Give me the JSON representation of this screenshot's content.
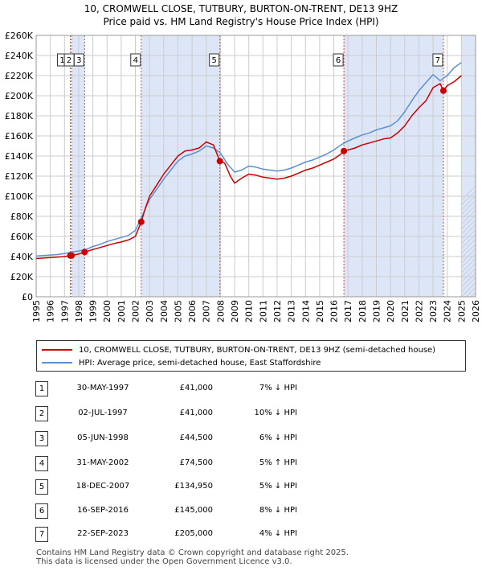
{
  "title_line1": "10, CROMWELL CLOSE, TUTBURY, BURTON-ON-TRENT, DE13 9HZ",
  "title_line2": "Price paid vs. HM Land Registry's House Price Index (HPI)",
  "colors": {
    "price_line": "#cc0000",
    "hpi_line": "#5b8fd6",
    "shade": "#dde6f7",
    "marker_line": "#dd4444",
    "grid": "#cccccc"
  },
  "chart_data": {
    "type": "line",
    "xlim": [
      1995,
      2026
    ],
    "ylim": [
      0,
      260000
    ],
    "x_ticks": [
      1995,
      1996,
      1997,
      1998,
      1999,
      2000,
      2001,
      2002,
      2003,
      2004,
      2005,
      2006,
      2007,
      2008,
      2009,
      2010,
      2011,
      2012,
      2013,
      2014,
      2015,
      2016,
      2017,
      2018,
      2019,
      2020,
      2021,
      2022,
      2023,
      2024,
      2025,
      2026
    ],
    "y_ticks": [
      {
        "value": 0,
        "label": "£0"
      },
      {
        "value": 20000,
        "label": "£20K"
      },
      {
        "value": 40000,
        "label": "£40K"
      },
      {
        "value": 60000,
        "label": "£60K"
      },
      {
        "value": 80000,
        "label": "£80K"
      },
      {
        "value": 100000,
        "label": "£100K"
      },
      {
        "value": 120000,
        "label": "£120K"
      },
      {
        "value": 140000,
        "label": "£140K"
      },
      {
        "value": 160000,
        "label": "£160K"
      },
      {
        "value": 180000,
        "label": "£180K"
      },
      {
        "value": 200000,
        "label": "£200K"
      },
      {
        "value": 220000,
        "label": "£220K"
      },
      {
        "value": 240000,
        "label": "£240K"
      },
      {
        "value": 260000,
        "label": "£260K"
      }
    ],
    "shaded_ranges": [
      [
        1997.52,
        1998.42
      ],
      [
        2002.41,
        2007.96
      ],
      [
        2016.71,
        2023.73
      ],
      [
        2025.0,
        2026.0
      ]
    ],
    "series": [
      {
        "name": "10, CROMWELL CLOSE, TUTBURY, BURTON-ON-TRENT, DE13 9HZ (semi-detached house)",
        "color": "#cc0000",
        "x": [
          1995.0,
          1995.5,
          1996.0,
          1996.5,
          1997.0,
          1997.41,
          1997.5,
          1998.0,
          1998.42,
          1999.0,
          1999.5,
          2000.0,
          2000.5,
          2001.0,
          2001.5,
          2002.0,
          2002.41,
          2002.7,
          2003.0,
          2003.5,
          2004.0,
          2004.5,
          2005.0,
          2005.5,
          2006.0,
          2006.5,
          2007.0,
          2007.5,
          2007.96,
          2008.3,
          2008.7,
          2009.0,
          2009.5,
          2010.0,
          2010.5,
          2011.0,
          2011.5,
          2012.0,
          2012.5,
          2013.0,
          2013.5,
          2014.0,
          2014.5,
          2015.0,
          2015.5,
          2016.0,
          2016.5,
          2016.71,
          2017.0,
          2017.5,
          2018.0,
          2018.5,
          2019.0,
          2019.5,
          2020.0,
          2020.5,
          2021.0,
          2021.5,
          2022.0,
          2022.5,
          2023.0,
          2023.5,
          2023.73,
          2024.0,
          2024.5,
          2025.0
        ],
        "values": [
          38000,
          38500,
          39000,
          39500,
          40000,
          41000,
          41000,
          42500,
          44500,
          47000,
          49000,
          51000,
          53000,
          54500,
          56500,
          60000,
          74500,
          88000,
          100000,
          111000,
          122000,
          131000,
          140000,
          145000,
          146000,
          148000,
          154000,
          151000,
          134950,
          133000,
          120000,
          113000,
          118000,
          122000,
          121000,
          119000,
          118000,
          117000,
          118000,
          120000,
          123000,
          126000,
          128000,
          131000,
          134000,
          137000,
          142000,
          145000,
          146000,
          148000,
          151000,
          153000,
          155000,
          157000,
          158000,
          163000,
          170000,
          180000,
          188000,
          195000,
          208000,
          212000,
          205000,
          210000,
          214000,
          220000
        ]
      },
      {
        "name": "HPI: Average price, semi-detached house, East Staffordshire",
        "color": "#5b8fd6",
        "x": [
          1995.0,
          1995.5,
          1996.0,
          1996.5,
          1997.0,
          1997.5,
          1998.0,
          1998.5,
          1999.0,
          1999.5,
          2000.0,
          2000.5,
          2001.0,
          2001.5,
          2002.0,
          2002.5,
          2003.0,
          2003.5,
          2004.0,
          2004.5,
          2005.0,
          2005.5,
          2006.0,
          2006.5,
          2007.0,
          2007.5,
          2008.0,
          2008.5,
          2009.0,
          2009.5,
          2010.0,
          2010.5,
          2011.0,
          2011.5,
          2012.0,
          2012.5,
          2013.0,
          2013.5,
          2014.0,
          2014.5,
          2015.0,
          2015.5,
          2016.0,
          2016.5,
          2017.0,
          2017.5,
          2018.0,
          2018.5,
          2019.0,
          2019.5,
          2020.0,
          2020.5,
          2021.0,
          2021.5,
          2022.0,
          2022.5,
          2023.0,
          2023.5,
          2024.0,
          2024.5,
          2025.0
        ],
        "values": [
          40500,
          41000,
          41500,
          42000,
          43000,
          44500,
          45500,
          47000,
          50000,
          52000,
          55000,
          57000,
          59000,
          61000,
          66000,
          81000,
          97000,
          107000,
          117000,
          126000,
          135000,
          140000,
          142000,
          145000,
          150000,
          148000,
          143000,
          132000,
          124000,
          126000,
          130000,
          129000,
          127000,
          126000,
          125000,
          126000,
          128000,
          131000,
          134000,
          136000,
          139000,
          142000,
          146000,
          151000,
          155000,
          158000,
          161000,
          163000,
          166000,
          168000,
          170000,
          175000,
          184000,
          195000,
          205000,
          213000,
          221000,
          215000,
          220000,
          228000,
          233000
        ]
      }
    ],
    "sales": [
      {
        "n": "1",
        "x": 1997.41,
        "value": 41000,
        "label_y": 236000
      },
      {
        "n": "2",
        "x": 1997.5,
        "value": 41000,
        "label_y": 236000
      },
      {
        "n": "3",
        "x": 1998.42,
        "value": 44500,
        "label_y": 236000
      },
      {
        "n": "4",
        "x": 2002.41,
        "value": 74500,
        "label_y": 236000
      },
      {
        "n": "5",
        "x": 2007.96,
        "value": 134950,
        "label_y": 236000
      },
      {
        "n": "6",
        "x": 2016.71,
        "value": 145000,
        "label_y": 236000
      },
      {
        "n": "7",
        "x": 2023.73,
        "value": 205000,
        "label_y": 236000
      }
    ]
  },
  "legend": {
    "price_label": "10, CROMWELL CLOSE, TUTBURY, BURTON-ON-TRENT, DE13 9HZ (semi-detached house)",
    "hpi_label": "HPI: Average price, semi-detached house, East Staffordshire"
  },
  "table": [
    {
      "n": "1",
      "date": "30-MAY-1997",
      "price": "£41,000",
      "hpi": "7% ↓ HPI"
    },
    {
      "n": "2",
      "date": "02-JUL-1997",
      "price": "£41,000",
      "hpi": "10% ↓ HPI"
    },
    {
      "n": "3",
      "date": "05-JUN-1998",
      "price": "£44,500",
      "hpi": "6% ↓ HPI"
    },
    {
      "n": "4",
      "date": "31-MAY-2002",
      "price": "£74,500",
      "hpi": "5% ↑ HPI"
    },
    {
      "n": "5",
      "date": "18-DEC-2007",
      "price": "£134,950",
      "hpi": "5% ↓ HPI"
    },
    {
      "n": "6",
      "date": "16-SEP-2016",
      "price": "£145,000",
      "hpi": "8% ↓ HPI"
    },
    {
      "n": "7",
      "date": "22-SEP-2023",
      "price": "£205,000",
      "hpi": "4% ↓ HPI"
    }
  ],
  "footer": {
    "line1": "Contains HM Land Registry data © Crown copyright and database right 2025.",
    "line2": "This data is licensed under the Open Government Licence v3.0."
  }
}
